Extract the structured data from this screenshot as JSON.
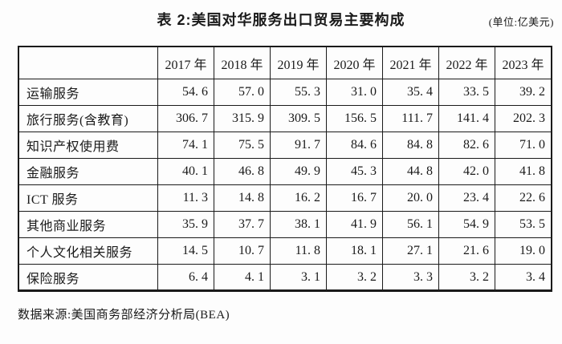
{
  "page": {
    "title": "表 2:美国对华服务出口贸易主要构成",
    "unit_note": "(单位:亿美元)",
    "source_note": "数据来源:美国商务部经济分析局(BEA)"
  },
  "table": {
    "corner_label": "",
    "columns": [
      "2017 年",
      "2018 年",
      "2019 年",
      "2020 年",
      "2021 年",
      "2022 年",
      "2023 年"
    ],
    "rows": [
      {
        "label": "运输服务",
        "values": [
          54.6,
          57.0,
          55.3,
          31.0,
          35.4,
          33.5,
          39.2
        ]
      },
      {
        "label": "旅行服务(含教育)",
        "values": [
          306.7,
          315.9,
          309.5,
          156.5,
          111.7,
          141.4,
          202.3
        ]
      },
      {
        "label": "知识产权使用费",
        "values": [
          74.1,
          75.5,
          91.7,
          84.6,
          84.8,
          82.6,
          71.0
        ]
      },
      {
        "label": "金融服务",
        "values": [
          40.1,
          46.8,
          49.9,
          45.3,
          44.8,
          42.0,
          41.8
        ]
      },
      {
        "label": "ICT 服务",
        "values": [
          11.3,
          14.8,
          16.2,
          16.7,
          20.0,
          23.4,
          22.6
        ]
      },
      {
        "label": "其他商业服务",
        "values": [
          35.9,
          37.7,
          38.1,
          41.9,
          56.1,
          54.9,
          53.5
        ]
      },
      {
        "label": "个人文化相关服务",
        "values": [
          14.5,
          10.7,
          11.8,
          18.1,
          27.1,
          21.6,
          19.0
        ]
      },
      {
        "label": "保险服务",
        "values": [
          6.4,
          4.1,
          3.1,
          3.2,
          3.3,
          3.2,
          3.4
        ]
      }
    ]
  },
  "colors": {
    "background": "#fdfdfd",
    "text": "#1a1a1a",
    "border": "#1a1a1a"
  }
}
